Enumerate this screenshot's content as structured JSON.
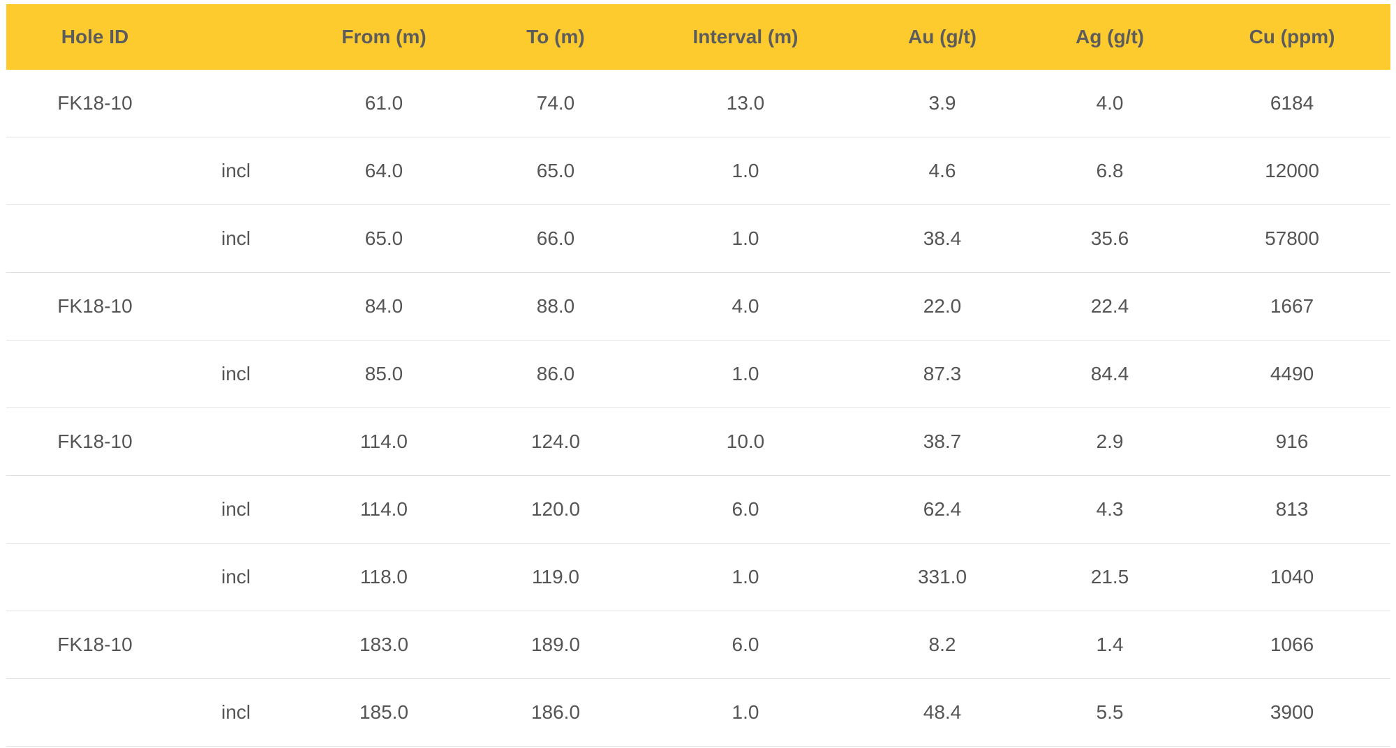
{
  "table": {
    "header": [
      "Hole ID",
      null,
      "From (m)",
      "To (m)",
      "Interval (m)",
      "Au (g/t)",
      "Ag (g/t)",
      "Cu (ppm)"
    ],
    "rows": [
      [
        "FK18-10",
        null,
        "61.0",
        "74.0",
        "13.0",
        "3.9",
        "4.0",
        "6184"
      ],
      [
        null,
        "incl",
        "64.0",
        "65.0",
        "1.0",
        "4.6",
        "6.8",
        "12000"
      ],
      [
        null,
        "incl",
        "65.0",
        "66.0",
        "1.0",
        "38.4",
        "35.6",
        "57800"
      ],
      [
        "FK18-10",
        null,
        "84.0",
        "88.0",
        "4.0",
        "22.0",
        "22.4",
        "1667"
      ],
      [
        null,
        "incl",
        "85.0",
        "86.0",
        "1.0",
        "87.3",
        "84.4",
        "4490"
      ],
      [
        "FK18-10",
        null,
        "114.0",
        "124.0",
        "10.0",
        "38.7",
        "2.9",
        "916"
      ],
      [
        null,
        "incl",
        "114.0",
        "120.0",
        "6.0",
        "62.4",
        "4.3",
        "813"
      ],
      [
        null,
        "incl",
        "118.0",
        "119.0",
        "1.0",
        "331.0",
        "21.5",
        "1040"
      ],
      [
        "FK18-10",
        null,
        "183.0",
        "189.0",
        "6.0",
        "8.2",
        "1.4",
        "1066"
      ],
      [
        null,
        "incl",
        "185.0",
        "186.0",
        "1.0",
        "48.4",
        "5.5",
        "3900"
      ]
    ]
  }
}
